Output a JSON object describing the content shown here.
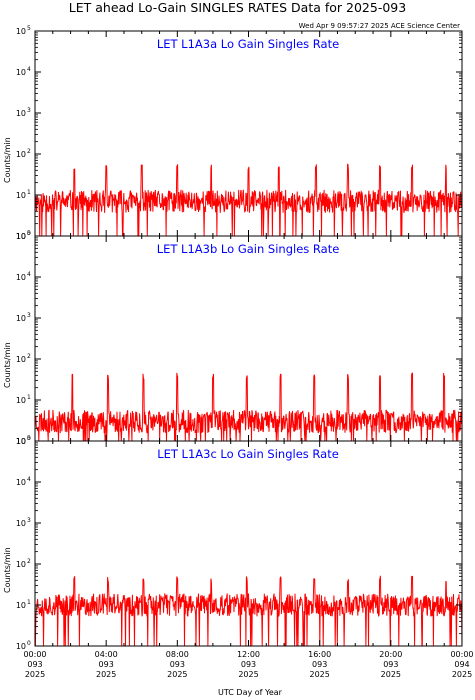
{
  "header": {
    "title": "LET ahead Lo-Gain SINGLES RATES Data for 2025-093",
    "timestamp": "Wed Apr  9 09:57:27 2025 ACE Science Center"
  },
  "colors": {
    "series": "#ff0000",
    "panel_title": "#0000ff",
    "axes": "#000000"
  },
  "chart_data": [
    {
      "type": "line",
      "title": "LET L1A3a Lo Gain Singles Rate",
      "ylabel": "Counts/min",
      "xlabel": "",
      "yscale": "log",
      "ylim": [
        1,
        100000
      ],
      "xlim": [
        0,
        24
      ],
      "baseline": 7,
      "spike_height": 50,
      "spike_hours": [
        2.2,
        4.0,
        6.0,
        8.0,
        9.9,
        12.0,
        13.7,
        15.8,
        17.6,
        19.4,
        21.2,
        23.1
      ]
    },
    {
      "type": "line",
      "title": "LET L1A3b Lo Gain Singles Rate",
      "ylabel": "Counts/min",
      "xlabel": "",
      "yscale": "log",
      "ylim": [
        1,
        100000
      ],
      "xlim": [
        0,
        24
      ],
      "baseline": 3,
      "spike_height": 40,
      "spike_hours": [
        2.1,
        4.1,
        6.1,
        8.0,
        10.0,
        11.9,
        13.8,
        15.7,
        17.6,
        19.4,
        21.2,
        23.0
      ]
    },
    {
      "type": "line",
      "title": "LET L1A3c Lo Gain Singles Rate",
      "ylabel": "Counts/min",
      "xlabel": "UTC Day of Year",
      "yscale": "log",
      "ylim": [
        1,
        100000
      ],
      "xlim": [
        0,
        24
      ],
      "baseline": 10,
      "spike_height": 45,
      "spike_hours": [
        2.2,
        4.1,
        6.1,
        8.0,
        9.9,
        11.9,
        13.8,
        15.7,
        17.6,
        19.4,
        21.2,
        23.1
      ]
    }
  ],
  "y_ticks": [
    {
      "base": "10",
      "exp": "0"
    },
    {
      "base": "10",
      "exp": "1"
    },
    {
      "base": "10",
      "exp": "2"
    },
    {
      "base": "10",
      "exp": "3"
    },
    {
      "base": "10",
      "exp": "4"
    },
    {
      "base": "10",
      "exp": "5"
    }
  ],
  "x_ticks": [
    {
      "hour": 0,
      "time": "00:00",
      "doy": "093",
      "year": "2025"
    },
    {
      "hour": 4,
      "time": "04:00",
      "doy": "093",
      "year": "2025"
    },
    {
      "hour": 8,
      "time": "08:00",
      "doy": "093",
      "year": "2025"
    },
    {
      "hour": 12,
      "time": "12:00",
      "doy": "093",
      "year": "2025"
    },
    {
      "hour": 16,
      "time": "16:00",
      "doy": "093",
      "year": "2025"
    },
    {
      "hour": 20,
      "time": "20:00",
      "doy": "093",
      "year": "2025"
    },
    {
      "hour": 24,
      "time": "00:00",
      "doy": "094",
      "year": "2025"
    }
  ]
}
